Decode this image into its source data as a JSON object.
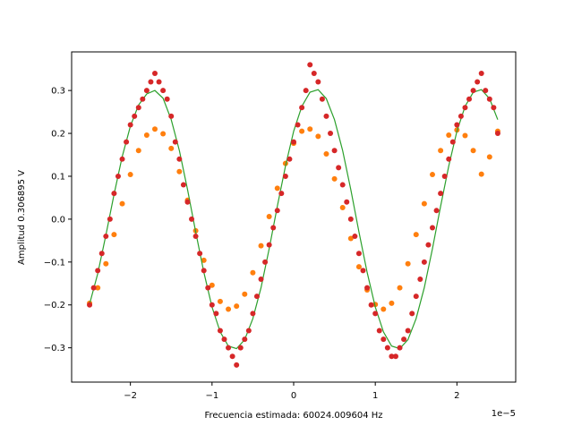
{
  "chart_data": {
    "type": "scatter",
    "title": "",
    "xlabel": "Frecuencia estimada: 60024.009604 Hz",
    "ylabel": "Amplitud 0.306895 V",
    "x_scale_label": "1e−5",
    "x_unit_factor": 1e-05,
    "xlim": [
      -2.72,
      2.72
    ],
    "ylim": [
      -0.38,
      0.39
    ],
    "x_ticks": [
      -2,
      -1,
      0,
      1,
      2
    ],
    "x_tick_labels": [
      "−2",
      "−1",
      "0",
      "1",
      "2"
    ],
    "y_ticks": [
      -0.3,
      -0.2,
      -0.1,
      0.0,
      0.1,
      0.2,
      0.3
    ],
    "y_tick_labels": [
      "−0.3",
      "−0.2",
      "−0.1",
      "0.0",
      "0.1",
      "0.2",
      "0.3"
    ],
    "grid": false,
    "legend": "none",
    "series": [
      {
        "kind": "points",
        "color": "#ff7f0e",
        "x": [
          -2.5,
          -2.4,
          -2.3,
          -2.2,
          -2.1,
          -2.0,
          -1.9,
          -1.8,
          -1.7,
          -1.6,
          -1.5,
          -1.4,
          -1.3,
          -1.2,
          -1.1,
          -1.0,
          -0.9,
          -0.8,
          -0.7,
          -0.6,
          -0.5,
          -0.4,
          -0.3,
          -0.2,
          -0.1,
          0.0,
          0.1,
          0.2,
          0.3,
          0.4,
          0.5,
          0.6,
          0.7,
          0.8,
          0.9,
          1.0,
          1.1,
          1.2,
          1.3,
          1.4,
          1.5,
          1.6,
          1.7,
          1.8,
          1.9,
          2.0,
          2.1,
          2.2,
          2.3,
          2.4,
          2.5
        ],
        "y": [
          -0.196,
          -0.16,
          -0.104,
          -0.036,
          0.036,
          0.104,
          0.16,
          0.196,
          0.21,
          0.199,
          0.165,
          0.111,
          0.044,
          -0.027,
          -0.096,
          -0.154,
          -0.192,
          -0.21,
          -0.203,
          -0.175,
          -0.125,
          -0.062,
          0.006,
          0.072,
          0.13,
          0.177,
          0.205,
          0.21,
          0.193,
          0.152,
          0.094,
          0.027,
          -0.045,
          -0.111,
          -0.165,
          -0.199,
          -0.21,
          -0.196,
          -0.16,
          -0.104,
          -0.036,
          0.036,
          0.104,
          0.16,
          0.196,
          0.208,
          0.195,
          0.16,
          0.105,
          0.145,
          0.205
        ]
      },
      {
        "kind": "line",
        "color": "#2ca02c",
        "x": [
          -2.5,
          -2.4,
          -2.3,
          -2.2,
          -2.1,
          -2.0,
          -1.9,
          -1.8,
          -1.7,
          -1.6,
          -1.5,
          -1.4,
          -1.3,
          -1.2,
          -1.1,
          -1.0,
          -0.9,
          -0.8,
          -0.7,
          -0.6,
          -0.5,
          -0.4,
          -0.3,
          -0.2,
          -0.1,
          0.0,
          0.1,
          0.2,
          0.3,
          0.4,
          0.5,
          0.6,
          0.7,
          0.8,
          0.9,
          1.0,
          1.1,
          1.2,
          1.3,
          1.4,
          1.5,
          1.6,
          1.7,
          1.8,
          1.9,
          2.0,
          2.1,
          2.2,
          2.3,
          2.4,
          2.5
        ],
        "y": [
          -0.198,
          -0.127,
          -0.037,
          0.058,
          0.146,
          0.217,
          0.266,
          0.292,
          0.3,
          0.282,
          0.232,
          0.16,
          0.069,
          -0.03,
          -0.124,
          -0.205,
          -0.263,
          -0.296,
          -0.302,
          -0.281,
          -0.232,
          -0.16,
          -0.069,
          0.03,
          0.124,
          0.205,
          0.263,
          0.296,
          0.302,
          0.281,
          0.232,
          0.16,
          0.069,
          -0.03,
          -0.124,
          -0.205,
          -0.263,
          -0.296,
          -0.302,
          -0.281,
          -0.232,
          -0.16,
          -0.069,
          0.03,
          0.124,
          0.205,
          0.263,
          0.296,
          0.302,
          0.281,
          0.232
        ]
      },
      {
        "kind": "points",
        "color": "#d62728",
        "x": [
          -2.5,
          -2.45,
          -2.4,
          -2.35,
          -2.3,
          -2.25,
          -2.2,
          -2.15,
          -2.1,
          -2.05,
          -2.0,
          -1.95,
          -1.9,
          -1.85,
          -1.8,
          -1.75,
          -1.7,
          -1.65,
          -1.6,
          -1.55,
          -1.5,
          -1.45,
          -1.4,
          -1.35,
          -1.3,
          -1.25,
          -1.2,
          -1.15,
          -1.1,
          -1.05,
          -1.0,
          -0.95,
          -0.9,
          -0.85,
          -0.8,
          -0.75,
          -0.7,
          -0.65,
          -0.6,
          -0.55,
          -0.5,
          -0.45,
          -0.4,
          -0.35,
          -0.3,
          -0.25,
          -0.2,
          -0.15,
          -0.1,
          -0.05,
          0.0,
          0.05,
          0.1,
          0.15,
          0.2,
          0.25,
          0.3,
          0.35,
          0.4,
          0.45,
          0.5,
          0.55,
          0.6,
          0.65,
          0.7,
          0.75,
          0.8,
          0.85,
          0.9,
          0.95,
          1.0,
          1.05,
          1.1,
          1.15,
          1.2,
          1.25,
          1.3,
          1.35,
          1.4,
          1.45,
          1.5,
          1.55,
          1.6,
          1.65,
          1.7,
          1.75,
          1.8,
          1.85,
          1.9,
          1.95,
          2.0,
          2.05,
          2.1,
          2.15,
          2.2,
          2.25,
          2.3,
          2.35,
          2.4,
          2.45,
          2.5
        ],
        "y": [
          -0.2,
          -0.16,
          -0.12,
          -0.08,
          -0.04,
          0.0,
          0.06,
          0.1,
          0.14,
          0.18,
          0.22,
          0.24,
          0.26,
          0.28,
          0.3,
          0.32,
          0.34,
          0.32,
          0.3,
          0.28,
          0.24,
          0.18,
          0.14,
          0.08,
          0.04,
          0.0,
          -0.04,
          -0.08,
          -0.12,
          -0.16,
          -0.2,
          -0.22,
          -0.26,
          -0.28,
          -0.3,
          -0.32,
          -0.34,
          -0.3,
          -0.28,
          -0.26,
          -0.22,
          -0.18,
          -0.14,
          -0.1,
          -0.06,
          -0.02,
          0.02,
          0.06,
          0.1,
          0.14,
          0.18,
          0.22,
          0.26,
          0.3,
          0.36,
          0.34,
          0.32,
          0.28,
          0.24,
          0.2,
          0.16,
          0.12,
          0.08,
          0.04,
          0.0,
          -0.04,
          -0.08,
          -0.12,
          -0.16,
          -0.2,
          -0.22,
          -0.26,
          -0.28,
          -0.3,
          -0.32,
          -0.32,
          -0.3,
          -0.28,
          -0.26,
          -0.22,
          -0.18,
          -0.14,
          -0.1,
          -0.06,
          -0.02,
          0.02,
          0.06,
          0.1,
          0.14,
          0.18,
          0.22,
          0.24,
          0.26,
          0.28,
          0.3,
          0.32,
          0.34,
          0.3,
          0.28,
          0.26,
          0.2
        ]
      }
    ]
  }
}
